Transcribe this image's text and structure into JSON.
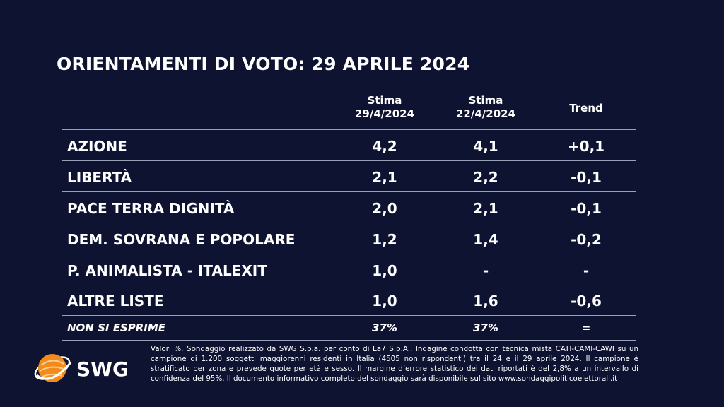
{
  "title": "ORIENTAMENTI DI VOTO: 29 APRILE 2024",
  "columns": [
    {
      "line1": "Stima",
      "line2": "29/4/2024"
    },
    {
      "line1": "Stima",
      "line2": "22/4/2024"
    },
    {
      "line1": "Trend",
      "line2": ""
    }
  ],
  "rows": [
    {
      "party": "AZIONE",
      "current": "4,2",
      "previous": "4,1",
      "trend": "+0,1"
    },
    {
      "party": "LIBERTÀ",
      "current": "2,1",
      "previous": "2,2",
      "trend": "-0,1"
    },
    {
      "party": "PACE TERRA DIGNITÀ",
      "current": "2,0",
      "previous": "2,1",
      "trend": "-0,1"
    },
    {
      "party": "DEM. SOVRANA E POPOLARE",
      "current": "1,2",
      "previous": "1,4",
      "trend": "-0,2"
    },
    {
      "party": "P. ANIMALISTA - ITALEXIT",
      "current": "1,0",
      "previous": "-",
      "trend": "-"
    },
    {
      "party": "ALTRE LISTE",
      "current": "1,0",
      "previous": "1,6",
      "trend": "-0,6"
    }
  ],
  "abstain": {
    "label": "NON SI ESPRIME",
    "current": "37%",
    "previous": "37%",
    "trend": "="
  },
  "logo": {
    "text": "SWG",
    "icon": "swg-globe-icon"
  },
  "footnote": "Valori %. Sondaggio realizzato da SWG S.p.a. per conto di La7 S.p.A.. Indagine condotta con tecnica mista CATI-CAMI-CAWI su un campione di 1.200 soggetti maggiorenni residenti in Italia (4505 non rispondenti) tra il 24 e il 29 aprile 2024. Il campione è stratificato per zona e prevede quote per età e sesso. Il margine d’errore statistico dei dati riportati è del 2,8% a un intervallo di confidenza del 95%. Il documento informativo completo del sondaggio sarà disponibile sul sito www.sondaggipoliticoelettorali.it",
  "colors": {
    "background": "#0f1332",
    "text": "#ffffff",
    "rule": "#9aa0b8",
    "logo_orange": "#f28a1e"
  },
  "chart_data": {
    "type": "table",
    "title": "ORIENTAMENTI DI VOTO: 29 APRILE 2024",
    "headers": [
      "Stima 29/4/2024",
      "Stima 22/4/2024",
      "Trend"
    ],
    "rows": [
      [
        "AZIONE",
        4.2,
        4.1,
        0.1
      ],
      [
        "LIBERTÀ",
        2.1,
        2.2,
        -0.1
      ],
      [
        "PACE TERRA DIGNITÀ",
        2.0,
        2.1,
        -0.1
      ],
      [
        "DEM. SOVRANA E POPOLARE",
        1.2,
        1.4,
        -0.2
      ],
      [
        "P. ANIMALISTA - ITALEXIT",
        1.0,
        null,
        null
      ],
      [
        "ALTRE LISTE",
        1.0,
        1.6,
        -0.6
      ],
      [
        "NON SI ESPRIME",
        37,
        37,
        0
      ]
    ]
  }
}
